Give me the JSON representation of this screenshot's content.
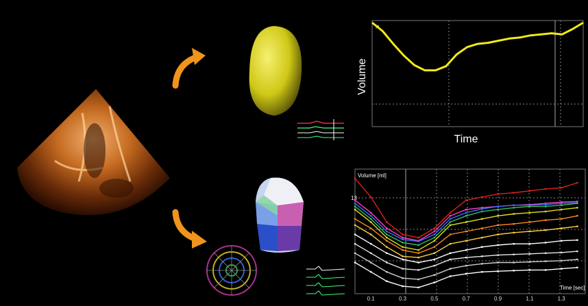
{
  "colors": {
    "background": "#000000",
    "arrow": "#f0941c",
    "lv_surface": "#d8d420",
    "top_curve": "#f2ea1a"
  },
  "panels": {
    "echo_image": "3D echocardiographic apical view",
    "top_volume_chart": {
      "ylabel": "Volume",
      "xlabel": "Time",
      "corner_tag": "↗"
    },
    "bottom_segment_chart": {
      "ylabel": "Volume [ml]",
      "xlabel": "Time [sec]",
      "y_mark": "13",
      "x_ticks": [
        "0.1",
        "0.3",
        "0.5",
        "0.7",
        "0.9",
        "1.1",
        "1.3"
      ]
    }
  },
  "chart_data": [
    {
      "type": "line",
      "title": "",
      "xlabel": "Time",
      "ylabel": "Volume",
      "series": [
        {
          "x": [
            0.0,
            0.05,
            0.1,
            0.15,
            0.2,
            0.25,
            0.3,
            0.35,
            0.4,
            0.45,
            0.5,
            0.55,
            0.6,
            0.65,
            0.7,
            0.75,
            0.8,
            0.85,
            0.9,
            0.95,
            1.0
          ],
          "y": [
            0.98,
            0.9,
            0.78,
            0.67,
            0.58,
            0.53,
            0.53,
            0.57,
            0.68,
            0.75,
            0.78,
            0.79,
            0.81,
            0.83,
            0.84,
            0.86,
            0.87,
            0.88,
            0.87,
            0.92,
            0.98
          ]
        }
      ],
      "grid": "dotted",
      "xlim": [
        0,
        1
      ],
      "ylim": [
        0,
        1
      ]
    },
    {
      "type": "line",
      "title": "",
      "xlabel": "Time [sec]",
      "ylabel": "Volume [ml]",
      "xlim": [
        0,
        1.45
      ],
      "ylim": [
        0,
        20
      ],
      "x": [
        0.0,
        0.1,
        0.2,
        0.3,
        0.4,
        0.5,
        0.6,
        0.7,
        0.8,
        0.9,
        1.0,
        1.1,
        1.2,
        1.3,
        1.4
      ],
      "series": [
        {
          "color": "#e02020",
          "values": [
            18.5,
            15.5,
            11.5,
            9.5,
            9.0,
            10.5,
            13.0,
            15.0,
            15.5,
            16.0,
            16.2,
            16.5,
            16.8,
            17.0,
            17.8
          ]
        },
        {
          "color": "#ff40c0",
          "values": [
            15.0,
            13.0,
            10.5,
            9.0,
            8.5,
            10.0,
            12.5,
            13.5,
            13.8,
            14.0,
            14.2,
            14.3,
            14.5,
            14.7,
            14.8
          ]
        },
        {
          "color": "#3a6cff",
          "values": [
            14.5,
            12.5,
            10.0,
            8.7,
            8.4,
            9.5,
            12.0,
            13.0,
            13.6,
            14.0,
            14.2,
            14.2,
            14.3,
            14.5,
            14.6
          ]
        },
        {
          "color": "#30c060",
          "values": [
            14.0,
            12.0,
            9.5,
            8.2,
            7.8,
            9.0,
            11.5,
            12.5,
            13.2,
            13.5,
            13.8,
            14.0,
            14.0,
            14.2,
            14.5
          ]
        },
        {
          "color": "#e0e020",
          "values": [
            13.5,
            11.5,
            9.0,
            7.5,
            7.0,
            8.5,
            11.0,
            11.5,
            12.0,
            12.5,
            12.8,
            13.0,
            13.2,
            13.5,
            13.8
          ]
        },
        {
          "color": "#ff8a20",
          "values": [
            12.0,
            10.5,
            8.5,
            7.0,
            6.5,
            7.5,
            9.5,
            10.0,
            10.5,
            11.0,
            11.2,
            11.5,
            11.8,
            12.0,
            12.5
          ]
        },
        {
          "color": "#ffd040",
          "values": [
            11.0,
            9.5,
            7.5,
            6.0,
            5.8,
            6.5,
            8.0,
            8.5,
            9.0,
            9.5,
            9.8,
            10.0,
            10.2,
            10.5,
            10.8
          ]
        },
        {
          "color": "#ffffff",
          "values": [
            9.5,
            8.0,
            6.5,
            5.5,
            5.0,
            5.5,
            6.5,
            7.0,
            7.5,
            7.8,
            8.0,
            8.0,
            8.2,
            8.5,
            8.6
          ]
        },
        {
          "color": "#e8e8e8",
          "values": [
            8.0,
            6.5,
            5.0,
            4.0,
            3.8,
            4.5,
            5.5,
            5.8,
            6.0,
            6.2,
            6.3,
            6.4,
            6.5,
            6.6,
            6.8
          ]
        },
        {
          "color": "#cfcfcf",
          "values": [
            6.5,
            5.0,
            3.5,
            2.5,
            2.3,
            3.0,
            4.0,
            4.5,
            4.8,
            5.0,
            5.0,
            5.1,
            5.2,
            5.3,
            5.5
          ]
        },
        {
          "color": "#ffffff",
          "values": [
            5.0,
            3.5,
            2.0,
            1.2,
            1.0,
            1.8,
            2.8,
            3.2,
            3.5,
            3.6,
            3.7,
            3.8,
            3.8,
            4.0,
            4.2
          ]
        }
      ]
    }
  ]
}
